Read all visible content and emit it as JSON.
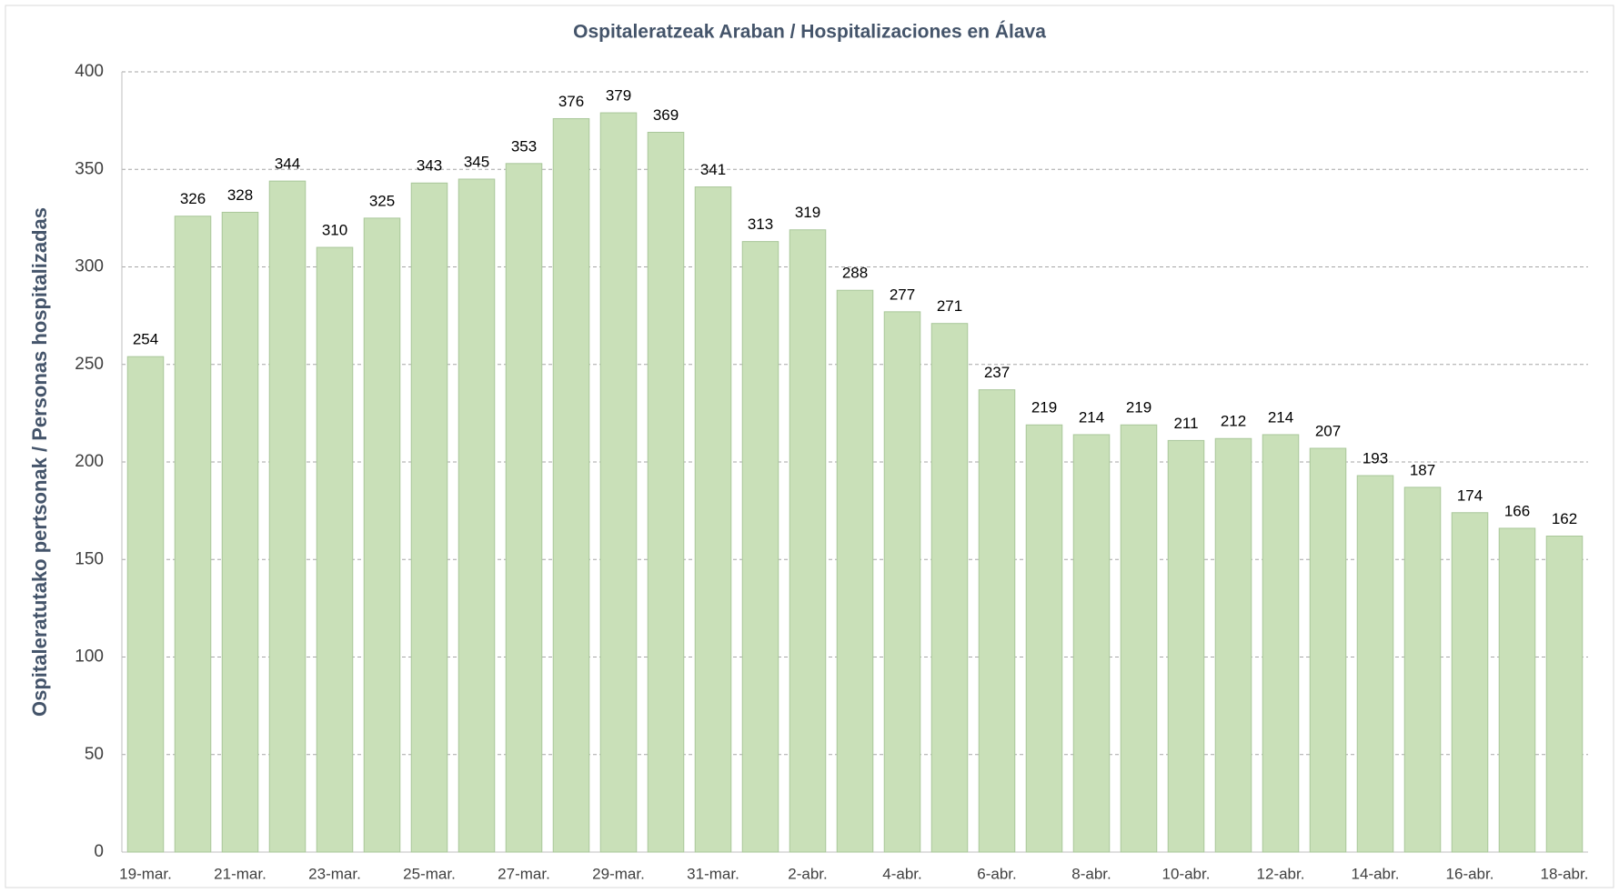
{
  "chart_data": {
    "type": "bar",
    "title": "Ospitaleratzeak Araban / Hospitalizaciones en Álava",
    "y_label": "Ospitaleratutako pertsonak / Personas hospitalizadas",
    "categories": [
      "19-mar.",
      null,
      "21-mar.",
      null,
      "23-mar.",
      null,
      "25-mar.",
      null,
      "27-mar.",
      null,
      "29-mar.",
      null,
      "31-mar.",
      null,
      "2-abr.",
      null,
      "4-abr.",
      null,
      "6-abr.",
      null,
      "8-abr.",
      null,
      "10-abr.",
      null,
      "12-abr.",
      null,
      "14-abr.",
      null,
      "16-abr.",
      null,
      "18-abr."
    ],
    "values": [
      254,
      326,
      328,
      344,
      310,
      325,
      343,
      345,
      353,
      376,
      379,
      369,
      341,
      313,
      319,
      288,
      277,
      271,
      237,
      219,
      214,
      219,
      211,
      212,
      214,
      207,
      193,
      187,
      174,
      166,
      162
    ],
    "color": "#c9e0b8",
    "ylim": [
      0,
      400
    ],
    "yticks": [
      0,
      50,
      100,
      150,
      200,
      250,
      300,
      350,
      400
    ],
    "grid": true
  }
}
